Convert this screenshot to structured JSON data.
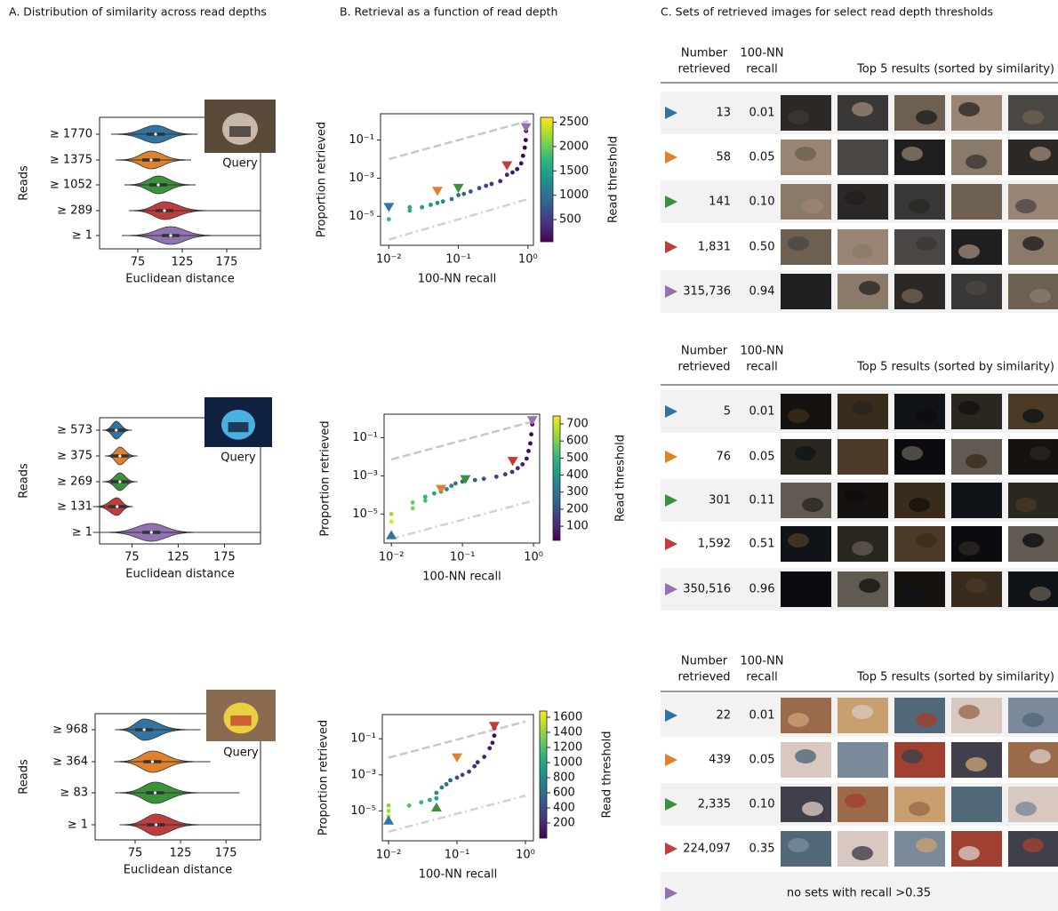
{
  "panel_titles": [
    "A. Distribution of similarity across read depths",
    "B. Retrieval as a function of read depth",
    "C. Sets of retrieved images for select read depth thresholds"
  ],
  "chart_data": [
    {
      "type": "violin",
      "ylabel": "Reads",
      "xlabel": "Euclidean distance",
      "query_label": "Query",
      "categories": [
        "≥ 1770",
        "≥ 1375",
        "≥ 1052",
        "≥ 289",
        "≥ 1"
      ],
      "values": [
        95,
        90,
        98,
        105,
        112
      ],
      "mins": [
        45,
        50,
        60,
        65,
        57
      ],
      "maxs": [
        142,
        135,
        140,
        213,
        213
      ],
      "colors": [
        "#3274a1",
        "#e1812c",
        "#3a923a",
        "#c03d3e",
        "#9372b2"
      ],
      "xlim": [
        32,
        213
      ],
      "xticks": [
        75,
        125,
        175
      ]
    },
    {
      "type": "scatter",
      "xlabel": "100-NN recall",
      "ylabel": "Proportion retrieved",
      "colorbar_label": "Read threshold",
      "log_x": true,
      "log_y": true,
      "colormap": "viridis",
      "x": [
        0.01,
        0.02,
        0.02,
        0.03,
        0.04,
        0.05,
        0.06,
        0.08,
        0.1,
        0.12,
        0.15,
        0.2,
        0.25,
        0.3,
        0.4,
        0.5,
        0.6,
        0.7,
        0.8,
        0.85,
        0.9,
        0.93,
        0.94
      ],
      "values": [
        7e-06,
        2e-05,
        3e-05,
        3e-05,
        4e-05,
        5e-05,
        6e-05,
        8e-05,
        0.00013,
        0.00015,
        0.0002,
        0.0003,
        0.0004,
        0.0005,
        0.0007,
        0.0015,
        0.002,
        0.003,
        0.006,
        0.015,
        0.04,
        0.1,
        0.3
      ],
      "thresholds": [
        1770,
        1600,
        1550,
        1400,
        1375,
        1300,
        1200,
        1052,
        950,
        850,
        750,
        650,
        550,
        450,
        350,
        289,
        200,
        150,
        100,
        60,
        30,
        10,
        1
      ],
      "xlim": [
        0.0076,
        1.2
      ],
      "ylim": [
        3e-07,
        2.4
      ],
      "xticks": [
        {
          "value": 0.01,
          "label": "10⁻²"
        },
        {
          "value": 0.1,
          "label": "10⁻¹"
        },
        {
          "value": 1,
          "label": "10⁰"
        }
      ],
      "yticks": [
        {
          "value": 0.1,
          "label": "10⁻¹"
        },
        {
          "value": 0.001,
          "label": "10⁻³"
        },
        {
          "value": 1e-05,
          "label": "10⁻⁵"
        }
      ],
      "colorbar_lim": [
        45,
        2600
      ],
      "colorbar_ticks": [
        500,
        1000,
        1500,
        2000,
        2500
      ],
      "markers": [
        {
          "x": 0.01,
          "y": 3e-05,
          "color": "#3274a1",
          "direction": "down"
        },
        {
          "x": 0.05,
          "y": 0.00021,
          "color": "#e1812c",
          "direction": "down"
        },
        {
          "x": 0.1,
          "y": 0.0003,
          "color": "#3a923a",
          "direction": "down"
        },
        {
          "x": 0.5,
          "y": 0.0046,
          "color": "#c03d3e",
          "direction": "down"
        },
        {
          "x": 0.94,
          "y": 0.46,
          "color": "#9372b2",
          "direction": "down"
        }
      ],
      "reference_lines": [
        {
          "x": [
            0.01,
            1
          ],
          "y": [
            0.01,
            1
          ],
          "style": "dashed"
        },
        {
          "x": [
            0.01,
            1
          ],
          "y": [
            6e-07,
            8e-05
          ],
          "style": "dashdot"
        }
      ]
    },
    {
      "type": "violin",
      "ylabel": "Reads",
      "xlabel": "Euclidean distance",
      "query_label": "Query",
      "categories": [
        "≥ 573",
        "≥ 375",
        "≥ 269",
        "≥ 131",
        "≥ 1"
      ],
      "values": [
        58,
        62,
        62,
        59,
        96
      ],
      "mins": [
        43,
        46,
        43,
        33,
        33
      ],
      "maxs": [
        75,
        81,
        81,
        76,
        214
      ],
      "colors": [
        "#3274a1",
        "#e1812c",
        "#3a923a",
        "#c03d3e",
        "#9372b2"
      ],
      "xlim": [
        40,
        214
      ],
      "xticks": [
        75,
        125,
        175
      ]
    },
    {
      "type": "scatter",
      "xlabel": "100-NN recall",
      "ylabel": "Proportion retrieved",
      "colorbar_label": "Read threshold",
      "log_x": true,
      "log_y": true,
      "colormap": "viridis",
      "x": [
        0.01,
        0.01,
        0.02,
        0.02,
        0.03,
        0.03,
        0.04,
        0.05,
        0.06,
        0.07,
        0.08,
        0.1,
        0.15,
        0.2,
        0.3,
        0.4,
        0.5,
        0.6,
        0.7,
        0.8,
        0.85,
        0.9,
        0.93,
        0.96
      ],
      "values": [
        4e-06,
        1e-05,
        2e-05,
        4e-05,
        5e-05,
        8e-05,
        0.00012,
        0.00015,
        0.0002,
        0.0003,
        0.0004,
        0.0005,
        0.0006,
        0.0007,
        0.0009,
        0.0012,
        0.0016,
        0.0025,
        0.004,
        0.008,
        0.02,
        0.05,
        0.15,
        0.5
      ],
      "thresholds": [
        700,
        650,
        600,
        573,
        520,
        480,
        440,
        400,
        375,
        340,
        300,
        269,
        230,
        200,
        160,
        131,
        110,
        90,
        70,
        50,
        35,
        20,
        8,
        1
      ],
      "xlim": [
        0.0079,
        1.22
      ],
      "ylim": [
        3e-07,
        1.7
      ],
      "xticks": [
        {
          "value": 0.01,
          "label": "10⁻²"
        },
        {
          "value": 0.1,
          "label": "10⁻¹"
        },
        {
          "value": 1,
          "label": "10⁰"
        }
      ],
      "yticks": [
        {
          "value": 0.1,
          "label": "10⁻¹"
        },
        {
          "value": 0.001,
          "label": "10⁻³"
        },
        {
          "value": 1e-05,
          "label": "10⁻⁵"
        }
      ],
      "colorbar_lim": [
        17,
        747
      ],
      "colorbar_ticks": [
        100,
        200,
        300,
        400,
        500,
        600,
        700
      ],
      "markers": [
        {
          "x": 0.01,
          "y": 8e-07,
          "color": "#3274a1",
          "direction": "up"
        },
        {
          "x": 0.05,
          "y": 0.0002,
          "color": "#e1812c",
          "direction": "down"
        },
        {
          "x": 0.11,
          "y": 0.00065,
          "color": "#3a923a",
          "direction": "down"
        },
        {
          "x": 0.51,
          "y": 0.0058,
          "color": "#c03d3e",
          "direction": "down"
        },
        {
          "x": 0.96,
          "y": 0.8,
          "color": "#9372b2",
          "direction": "down"
        }
      ],
      "reference_lines": [
        {
          "x": [
            0.01,
            1
          ],
          "y": [
            0.0072,
            0.72
          ],
          "style": "dashed"
        },
        {
          "x": [
            0.01,
            1
          ],
          "y": [
            5e-07,
            5e-05
          ],
          "style": "dashdot"
        }
      ]
    },
    {
      "type": "violin",
      "ylabel": "Reads",
      "xlabel": "Euclidean distance",
      "query_label": "Query",
      "categories": [
        "≥ 968",
        "≥ 364",
        "≥ 83",
        "≥ 1"
      ],
      "values": [
        85,
        94,
        97,
        98
      ],
      "mins": [
        53,
        52,
        53,
        58
      ],
      "maxs": [
        147,
        158,
        190,
        213
      ],
      "colors": [
        "#3274a1",
        "#e1812c",
        "#3a923a",
        "#c03d3e"
      ],
      "xlim": [
        31,
        213
      ],
      "xticks": [
        75,
        125,
        175
      ]
    },
    {
      "type": "scatter",
      "xlabel": "100-NN recall",
      "ylabel": "Proportion retrieved",
      "colorbar_label": "Read threshold",
      "log_x": true,
      "log_y": true,
      "colormap": "viridis",
      "x": [
        0.01,
        0.01,
        0.01,
        0.02,
        0.03,
        0.04,
        0.05,
        0.05,
        0.06,
        0.07,
        0.08,
        0.1,
        0.12,
        0.15,
        0.18,
        0.2,
        0.25,
        0.3,
        0.33,
        0.35,
        0.35
      ],
      "values": [
        5e-06,
        1e-05,
        2e-05,
        2e-05,
        3e-05,
        4e-05,
        5e-05,
        0.0001,
        0.0002,
        0.0003,
        0.0005,
        0.0007,
        0.001,
        0.0015,
        0.003,
        0.005,
        0.01,
        0.03,
        0.06,
        0.15,
        0.4
      ],
      "thresholds": [
        1500,
        1450,
        1400,
        1200,
        1100,
        1000,
        968,
        850,
        700,
        600,
        500,
        400,
        364,
        300,
        250,
        200,
        150,
        100,
        83,
        40,
        1
      ],
      "xlim": [
        0.0081,
        1.31
      ],
      "ylim": [
        2.2e-07,
        2.2
      ],
      "xticks": [
        {
          "value": 0.01,
          "label": "10⁻²"
        },
        {
          "value": 0.1,
          "label": "10⁻¹"
        },
        {
          "value": 1,
          "label": "10⁰"
        }
      ],
      "yticks": [
        {
          "value": 0.1,
          "label": "10⁻¹"
        },
        {
          "value": 0.001,
          "label": "10⁻³"
        },
        {
          "value": 1e-05,
          "label": "10⁻⁵"
        }
      ],
      "colorbar_lim": [
        0,
        1682
      ],
      "colorbar_ticks": [
        200,
        400,
        600,
        800,
        1000,
        1200,
        1400,
        1600
      ],
      "markers": [
        {
          "x": 0.01,
          "y": 3e-06,
          "color": "#3274a1",
          "direction": "up"
        },
        {
          "x": 0.05,
          "y": 1.6e-05,
          "color": "#3a923a",
          "direction": "up"
        },
        {
          "x": 0.1,
          "y": 0.009,
          "color": "#e1812c",
          "direction": "down"
        },
        {
          "x": 0.35,
          "y": 0.5,
          "color": "#c03d3e",
          "direction": "down"
        }
      ],
      "reference_lines": [
        {
          "x": [
            0.01,
            1
          ],
          "y": [
            0.009,
            0.9
          ],
          "style": "dashed"
        },
        {
          "x": [
            0.01,
            1
          ],
          "y": [
            7e-07,
            7e-05
          ],
          "style": "dashdot"
        }
      ]
    }
  ],
  "tables": [
    {
      "header": {
        "number": [
          "Number",
          "retrieved"
        ],
        "recall": [
          "100-NN",
          "recall"
        ],
        "results": "Top 5 results (sorted by similarity)"
      },
      "rows": [
        {
          "color": "#3274a1",
          "number": "13",
          "recall": "0.01"
        },
        {
          "color": "#e1812c",
          "number": "58",
          "recall": "0.05"
        },
        {
          "color": "#3a923a",
          "number": "141",
          "recall": "0.10"
        },
        {
          "color": "#c03d3e",
          "number": "1,831",
          "recall": "0.50"
        },
        {
          "color": "#9372b2",
          "number": "315,736",
          "recall": "0.94"
        }
      ]
    },
    {
      "header": {
        "number": [
          "Number",
          "retrieved"
        ],
        "recall": [
          "100-NN",
          "recall"
        ],
        "results": "Top 5 results (sorted by similarity)"
      },
      "rows": [
        {
          "color": "#3274a1",
          "number": "5",
          "recall": "0.01"
        },
        {
          "color": "#e1812c",
          "number": "76",
          "recall": "0.05"
        },
        {
          "color": "#3a923a",
          "number": "301",
          "recall": "0.11"
        },
        {
          "color": "#c03d3e",
          "number": "1,592",
          "recall": "0.51"
        },
        {
          "color": "#9372b2",
          "number": "350,516",
          "recall": "0.96"
        }
      ]
    },
    {
      "header": {
        "number": [
          "Number",
          "retrieved"
        ],
        "recall": [
          "100-NN",
          "recall"
        ],
        "results": "Top 5 results (sorted by similarity)"
      },
      "rows": [
        {
          "color": "#3274a1",
          "number": "22",
          "recall": "0.01"
        },
        {
          "color": "#e1812c",
          "number": "439",
          "recall": "0.05"
        },
        {
          "color": "#3a923a",
          "number": "2,335",
          "recall": "0.10"
        },
        {
          "color": "#c03d3e",
          "number": "224,097",
          "recall": "0.35"
        },
        {
          "color": "#9372b2",
          "text": "no sets with recall >0.35"
        }
      ]
    }
  ]
}
